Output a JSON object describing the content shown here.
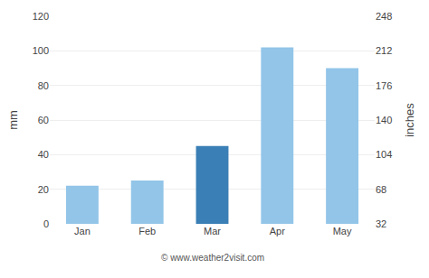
{
  "chart_data": {
    "type": "bar",
    "categories": [
      "Jan",
      "Feb",
      "Mar",
      "Apr",
      "May"
    ],
    "values": [
      22,
      25,
      45,
      102,
      90
    ],
    "colors": [
      "#92C5E8",
      "#92C5E8",
      "#3A7FB5",
      "#92C5E8",
      "#92C5E8"
    ],
    "ylabel": "mm",
    "y2label": "inches",
    "ylim": [
      0,
      120
    ],
    "yticks": [
      0,
      20,
      40,
      60,
      80,
      100,
      120
    ],
    "y2lim": [
      32,
      248
    ],
    "y2ticks": [
      32,
      68,
      104,
      140,
      176,
      212,
      248
    ],
    "grid": true,
    "annotations": [
      "© www.weather2visit.com"
    ]
  }
}
